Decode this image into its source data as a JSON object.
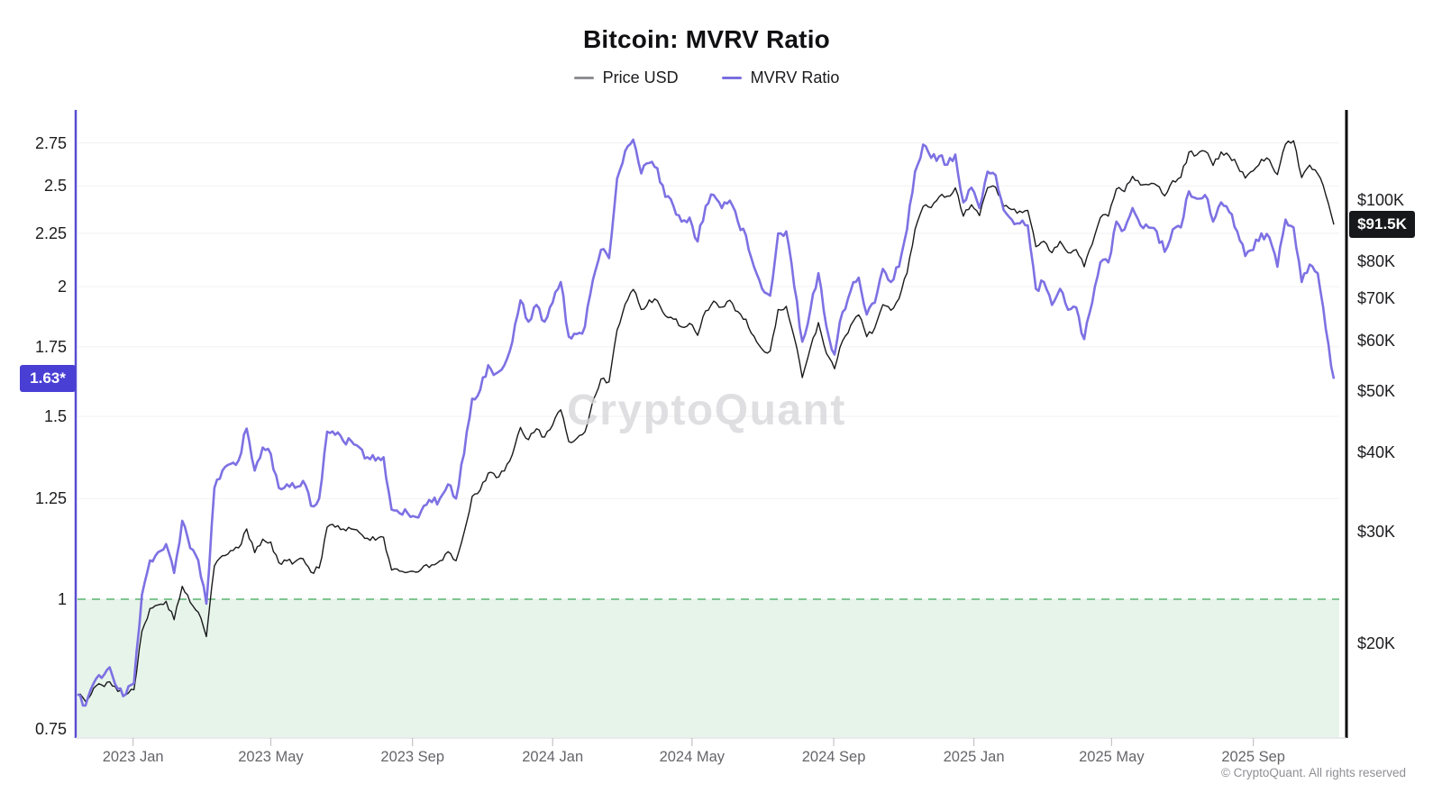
{
  "title": "Bitcoin: MVRV Ratio",
  "watermark": "CryptoQuant",
  "copyright": "© CryptoQuant. All rights reserved",
  "badges": {
    "mvrv_last": "1.63*",
    "price_last": "$91.5K"
  },
  "colors": {
    "price_line": "#1a1a1d",
    "mvrv_line": "#7d71e3",
    "legend_price_dash": "#8e8e93",
    "legend_mvrv_dash": "#7a6fe0",
    "left_axis": "#584dd0",
    "right_axis": "#0a0a0a",
    "bottom_axis": "#dcdce0",
    "gridline": "#f1f1f4",
    "band_fill": "#e7f4ea",
    "band_dash_line": "#7fc591",
    "mvrv_badge_bg": "#4a3fd4",
    "price_badge_bg": "#17181b"
  },
  "chart_data": {
    "type": "line",
    "title": "Bitcoin: MVRV Ratio",
    "x_start": "2022-11-14",
    "x_step_days": 7,
    "legend_position": "top-center",
    "grid": "horizontal-left-ticks",
    "threshold_band": {
      "below_mvrv": 1,
      "meaning": "MVRV below 1 zone"
    },
    "y_left": {
      "scale": "log",
      "label": "MVRV Ratio",
      "range": [
        0.72,
        2.96
      ]
    },
    "y_right": {
      "scale": "log",
      "label": "Price USD",
      "range_thousands": [
        14,
        139
      ]
    },
    "axes": {
      "left_ticks": [
        {
          "label": "2.75",
          "value": 2.75
        },
        {
          "label": "2.5",
          "value": 2.5
        },
        {
          "label": "2.25",
          "value": 2.25
        },
        {
          "label": "2",
          "value": 2
        },
        {
          "label": "1.75",
          "value": 1.75
        },
        {
          "label": "1.5",
          "value": 1.5
        },
        {
          "label": "1.25",
          "value": 1.25
        },
        {
          "label": "1",
          "value": 1
        },
        {
          "label": "0.75",
          "value": 0.75
        }
      ],
      "right_ticks": [
        {
          "label": "$100K",
          "value": 100
        },
        {
          "label": "$80K",
          "value": 80
        },
        {
          "label": "$70K",
          "value": 70
        },
        {
          "label": "$60K",
          "value": 60
        },
        {
          "label": "$50K",
          "value": 50
        },
        {
          "label": "$40K",
          "value": 40
        },
        {
          "label": "$30K",
          "value": 30
        },
        {
          "label": "$20K",
          "value": 20
        }
      ],
      "x_ticks": [
        {
          "label": "2023 Jan",
          "week": 6.9
        },
        {
          "label": "2023 May",
          "week": 24.0
        },
        {
          "label": "2023 Sep",
          "week": 41.6
        },
        {
          "label": "2024 Jan",
          "week": 59.0
        },
        {
          "label": "2024 May",
          "week": 76.3
        },
        {
          "label": "2024 Sep",
          "week": 93.9
        },
        {
          "label": "2025 Jan",
          "week": 111.3
        },
        {
          "label": "2025 May",
          "week": 128.4
        },
        {
          "label": "2025 Sep",
          "week": 146.0
        }
      ]
    },
    "series": [
      {
        "name": "Price USD",
        "axis": "right",
        "unit": "USD thousands",
        "last_label": "$91.5K",
        "values": [
          16.6,
          16.2,
          17.0,
          17.2,
          17.4,
          16.8,
          16.6,
          16.9,
          20.9,
          22.7,
          23.0,
          23.3,
          21.8,
          24.6,
          23.2,
          22.4,
          20.5,
          26.5,
          27.5,
          28.0,
          28.3,
          30.3,
          27.8,
          29.2,
          28.9,
          26.8,
          27.0,
          26.9,
          27.2,
          25.9,
          26.3,
          30.5,
          30.5,
          30.3,
          30.3,
          29.9,
          29.3,
          29.1,
          29.4,
          26.1,
          26.0,
          25.9,
          25.9,
          26.5,
          26.6,
          27.0,
          27.9,
          27.0,
          29.9,
          34.1,
          34.9,
          37.1,
          36.5,
          37.4,
          39.7,
          43.8,
          41.9,
          43.6,
          42.3,
          44.2,
          46.7,
          41.6,
          42.1,
          43.1,
          48.3,
          52.2,
          51.7,
          62.4,
          68.5,
          72.3,
          67.2,
          69.6,
          69.4,
          65.7,
          64.9,
          63.1,
          63.9,
          61.2,
          66.9,
          69.3,
          67.8,
          69.5,
          66.7,
          64.9,
          61.0,
          58.2,
          57.8,
          67.2,
          68.0,
          60.7,
          52.5,
          58.5,
          64.1,
          57.3,
          54.2,
          60.0,
          63.4,
          65.9,
          60.9,
          62.9,
          68.4,
          67.0,
          69.9,
          76.7,
          89.9,
          97.7,
          97.3,
          101.2,
          101.4,
          104.5,
          94.3,
          98.3,
          94.5,
          104.6,
          104.8,
          97.8,
          96.6,
          96.1,
          96.3,
          84.4,
          86.1,
          82.6,
          86.1,
          82.6,
          83.5,
          78.5,
          85.2,
          93.8,
          94.3,
          104.1,
          103.1,
          109.0,
          105.6,
          105.7,
          105.5,
          101.5,
          107.3,
          108.6,
          119.0,
          117.9,
          119.4,
          113.4,
          119.1,
          117.4,
          113.4,
          108.3,
          111.2,
          115.9,
          115.7,
          109.7,
          122.5,
          124.0,
          108.5,
          113.5,
          110.0,
          101.8,
          91.5
        ]
      },
      {
        "name": "MVRV Ratio",
        "axis": "left",
        "unit": "ratio",
        "last_label": "1.63*",
        "values": [
          0.81,
          0.79,
          0.83,
          0.84,
          0.86,
          0.82,
          0.81,
          0.83,
          1.01,
          1.09,
          1.11,
          1.13,
          1.06,
          1.19,
          1.12,
          1.09,
          0.99,
          1.28,
          1.33,
          1.35,
          1.36,
          1.46,
          1.33,
          1.4,
          1.38,
          1.28,
          1.29,
          1.28,
          1.3,
          1.23,
          1.25,
          1.45,
          1.44,
          1.42,
          1.42,
          1.4,
          1.37,
          1.36,
          1.37,
          1.22,
          1.21,
          1.21,
          1.2,
          1.23,
          1.24,
          1.25,
          1.29,
          1.25,
          1.38,
          1.56,
          1.59,
          1.68,
          1.65,
          1.68,
          1.77,
          1.94,
          1.85,
          1.92,
          1.85,
          1.93,
          2.02,
          1.79,
          1.8,
          1.83,
          2.03,
          2.17,
          2.13,
          2.54,
          2.7,
          2.77,
          2.57,
          2.63,
          2.6,
          2.44,
          2.39,
          2.31,
          2.33,
          2.21,
          2.39,
          2.45,
          2.38,
          2.42,
          2.31,
          2.24,
          2.09,
          1.99,
          1.96,
          2.25,
          2.26,
          2.0,
          1.77,
          1.9,
          2.06,
          1.83,
          1.72,
          1.89,
          1.98,
          2.04,
          1.88,
          1.93,
          2.08,
          2.02,
          2.09,
          2.27,
          2.58,
          2.74,
          2.66,
          2.67,
          2.62,
          2.68,
          2.41,
          2.49,
          2.38,
          2.58,
          2.56,
          2.37,
          2.32,
          2.3,
          2.29,
          1.99,
          2.02,
          1.92,
          1.99,
          1.9,
          1.91,
          1.78,
          1.93,
          2.11,
          2.11,
          2.31,
          2.27,
          2.38,
          2.29,
          2.28,
          2.26,
          2.16,
          2.27,
          2.28,
          2.47,
          2.43,
          2.45,
          2.31,
          2.41,
          2.36,
          2.26,
          2.14,
          2.17,
          2.25,
          2.23,
          2.09,
          2.32,
          2.28,
          2.02,
          2.1,
          2.06,
          1.82,
          1.63
        ]
      }
    ]
  }
}
